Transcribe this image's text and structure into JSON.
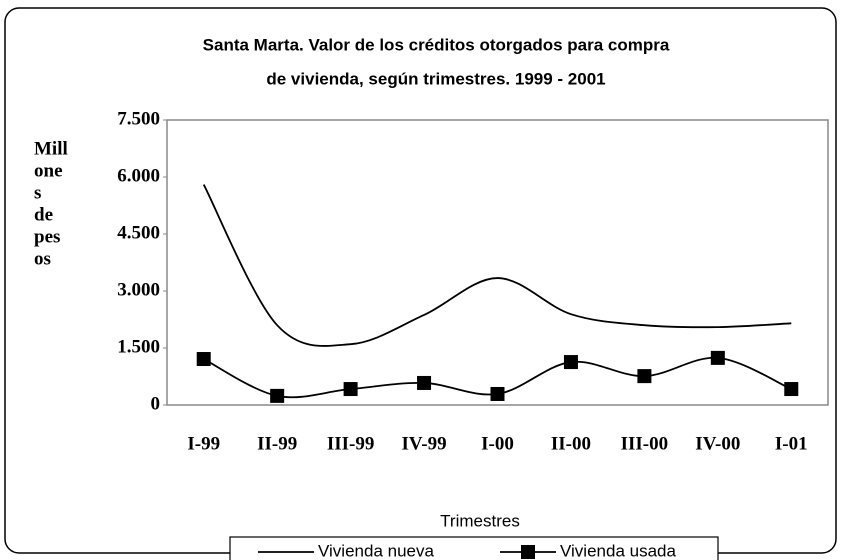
{
  "chart_data": {
    "type": "line",
    "title": [
      "Santa Marta.  Valor de los créditos otorgados para compra",
      "de vivienda, según trimestres. 1999 - 2001"
    ],
    "ylabel": [
      "Mill",
      "one",
      "s",
      "de",
      "pes",
      "os"
    ],
    "xlabel": "Trimestres",
    "categories": [
      "I-99",
      "II-99",
      "III-99",
      "IV-99",
      "I-00",
      "II-00",
      "III-00",
      "IV-00",
      "I-01"
    ],
    "series": [
      {
        "name": "Vivienda nueva",
        "color": "#000000",
        "marker": "none",
        "values": [
          5800,
          2100,
          1600,
          2370,
          3340,
          2390,
          2100,
          2050,
          2150
        ]
      },
      {
        "name": "Vivienda usada",
        "color": "#000000",
        "marker": "square",
        "values": [
          1210,
          240,
          420,
          580,
          290,
          1130,
          760,
          1240,
          420
        ]
      }
    ],
    "ylim": [
      0,
      7500
    ],
    "yticks": [
      0,
      {
        "value": 1500,
        "label": "1.500"
      },
      {
        "value": 3000,
        "label": "3.000"
      },
      {
        "value": 4500,
        "label": "4.500"
      },
      {
        "value": 6000,
        "label": "6.000"
      },
      {
        "value": 7500,
        "label": "7.500"
      }
    ],
    "grid": false,
    "legend": "bottom"
  }
}
